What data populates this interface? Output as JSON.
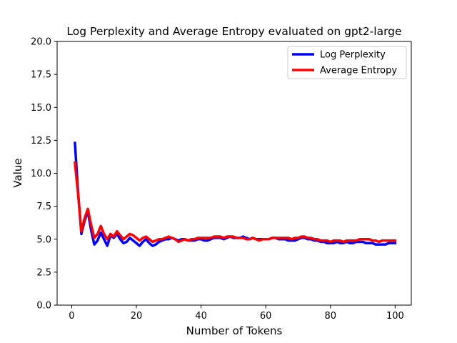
{
  "chart_data": {
    "type": "line",
    "title": "Log Perplexity and Average Entropy evaluated on gpt2-large",
    "xlabel": "Number of Tokens",
    "ylabel": "Value",
    "xlim": [
      -4.5,
      105
    ],
    "ylim": [
      0,
      20
    ],
    "x_ticks": [
      0,
      20,
      40,
      60,
      80,
      100
    ],
    "x_tick_labels": [
      "0",
      "20",
      "40",
      "60",
      "80",
      "100"
    ],
    "y_ticks": [
      0,
      2.5,
      5,
      7.5,
      10,
      12.5,
      15,
      17.5,
      20
    ],
    "y_tick_labels": [
      "0.0",
      "2.5",
      "5.0",
      "7.5",
      "10.0",
      "12.5",
      "15.0",
      "17.5",
      "20.0"
    ],
    "legend": "top-right",
    "grid": false,
    "series": [
      {
        "name": "Log Perplexity",
        "color": "#0000ff",
        "x": [
          1,
          2,
          3,
          4,
          5,
          6,
          7,
          8,
          9,
          10,
          11,
          12,
          13,
          14,
          15,
          16,
          17,
          18,
          19,
          20,
          21,
          22,
          23,
          24,
          25,
          26,
          27,
          28,
          29,
          30,
          31,
          32,
          33,
          34,
          35,
          36,
          37,
          38,
          39,
          40,
          41,
          42,
          43,
          44,
          45,
          46,
          47,
          48,
          49,
          50,
          51,
          52,
          53,
          54,
          55,
          56,
          57,
          58,
          59,
          60,
          61,
          62,
          63,
          64,
          65,
          66,
          67,
          68,
          69,
          70,
          71,
          72,
          73,
          74,
          75,
          76,
          77,
          78,
          79,
          80,
          81,
          82,
          83,
          84,
          85,
          86,
          87,
          88,
          89,
          90,
          91,
          92,
          93,
          94,
          95,
          96,
          97,
          98,
          99,
          100
        ],
        "values": [
          12.3,
          8.5,
          5.4,
          6.4,
          7.1,
          5.7,
          4.6,
          4.9,
          5.5,
          5.0,
          4.5,
          5.3,
          5.1,
          5.4,
          5.0,
          4.7,
          4.8,
          5.1,
          4.9,
          4.7,
          4.5,
          4.8,
          5.0,
          4.7,
          4.5,
          4.6,
          4.8,
          4.9,
          5.0,
          5.0,
          5.1,
          5.0,
          4.9,
          5.0,
          5.0,
          4.9,
          4.9,
          4.9,
          5.0,
          5.0,
          4.9,
          4.9,
          5.0,
          5.1,
          5.1,
          5.1,
          5.0,
          5.1,
          5.2,
          5.1,
          5.1,
          5.1,
          5.2,
          5.1,
          5.0,
          5.1,
          5.0,
          5.0,
          5.0,
          5.0,
          5.0,
          5.1,
          5.1,
          5.0,
          5.0,
          5.0,
          4.9,
          4.9,
          4.9,
          5.0,
          5.1,
          5.1,
          5.0,
          5.0,
          4.9,
          4.9,
          4.8,
          4.8,
          4.7,
          4.7,
          4.7,
          4.8,
          4.7,
          4.7,
          4.8,
          4.7,
          4.7,
          4.8,
          4.8,
          4.8,
          4.7,
          4.7,
          4.7,
          4.6,
          4.6,
          4.6,
          4.6,
          4.7,
          4.7,
          4.7
        ]
      },
      {
        "name": "Average Entropy",
        "color": "#ff0000",
        "x": [
          1,
          2,
          3,
          4,
          5,
          6,
          7,
          8,
          9,
          10,
          11,
          12,
          13,
          14,
          15,
          16,
          17,
          18,
          19,
          20,
          21,
          22,
          23,
          24,
          25,
          26,
          27,
          28,
          29,
          30,
          31,
          32,
          33,
          34,
          35,
          36,
          37,
          38,
          39,
          40,
          41,
          42,
          43,
          44,
          45,
          46,
          47,
          48,
          49,
          50,
          51,
          52,
          53,
          54,
          55,
          56,
          57,
          58,
          59,
          60,
          61,
          62,
          63,
          64,
          65,
          66,
          67,
          68,
          69,
          70,
          71,
          72,
          73,
          74,
          75,
          76,
          77,
          78,
          79,
          80,
          81,
          82,
          83,
          84,
          85,
          86,
          87,
          88,
          89,
          90,
          91,
          92,
          93,
          94,
          95,
          96,
          97,
          98,
          99,
          100
        ],
        "values": [
          10.8,
          8.4,
          5.6,
          6.6,
          7.3,
          6.1,
          5.1,
          5.4,
          6.0,
          5.4,
          5.0,
          5.4,
          5.2,
          5.6,
          5.3,
          5.0,
          5.2,
          5.4,
          5.3,
          5.1,
          4.9,
          5.1,
          5.2,
          5.0,
          4.8,
          4.9,
          5.0,
          5.0,
          5.1,
          5.2,
          5.1,
          5.0,
          4.8,
          4.9,
          5.0,
          4.9,
          5.0,
          5.0,
          5.1,
          5.1,
          5.1,
          5.1,
          5.1,
          5.2,
          5.2,
          5.2,
          5.1,
          5.2,
          5.2,
          5.2,
          5.1,
          5.1,
          5.1,
          5.0,
          5.0,
          5.1,
          5.0,
          4.9,
          5.0,
          5.0,
          5.0,
          5.1,
          5.1,
          5.1,
          5.1,
          5.1,
          5.1,
          5.0,
          5.1,
          5.1,
          5.2,
          5.2,
          5.1,
          5.1,
          5.0,
          5.0,
          4.9,
          4.9,
          4.9,
          4.8,
          4.9,
          4.9,
          4.9,
          4.8,
          4.9,
          4.9,
          4.9,
          4.9,
          5.0,
          5.0,
          5.0,
          5.0,
          4.9,
          4.9,
          4.8,
          4.9,
          4.9,
          4.9,
          4.9,
          4.9
        ]
      }
    ]
  }
}
